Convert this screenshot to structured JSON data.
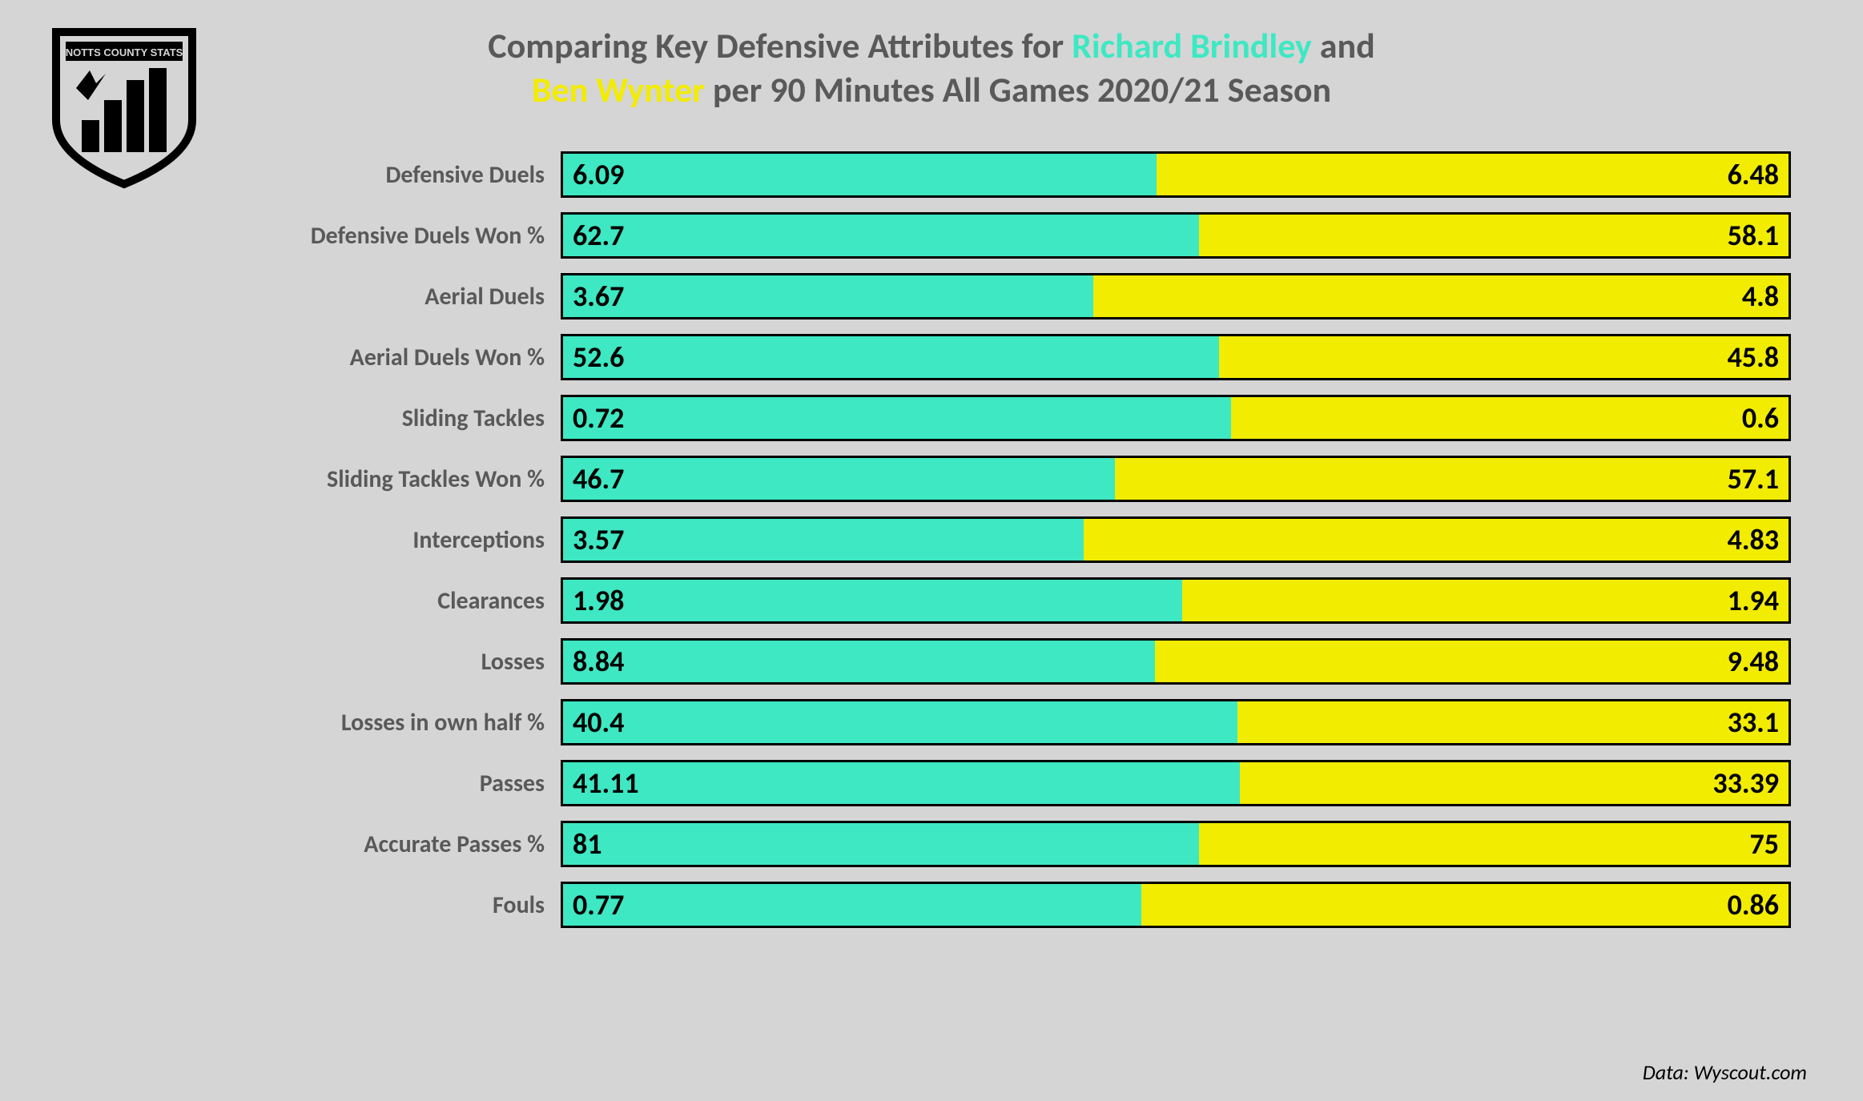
{
  "layout": {
    "background_color": "#d5d5d5",
    "title_color": "#595959",
    "title_fontsize": 44,
    "label_color": "#595959",
    "label_fontsize": 30,
    "value_color": "#000000",
    "value_fontsize": 36,
    "bar_border_color": "#000000",
    "bar_border_width": 3,
    "credit_color": "#000000",
    "credit_fontsize": 26
  },
  "players": {
    "a": {
      "name": "Richard Brindley",
      "color": "#3de8c3"
    },
    "b": {
      "name": "Ben Wynter",
      "color": "#f2ec00"
    }
  },
  "title": {
    "pre_a": "Comparing Key Defensive Attributes for ",
    "between": " and ",
    "post_b": " per 90 Minutes All Games 2020/21 Season"
  },
  "metrics": [
    {
      "label": "Defensive Duels",
      "a": "6.09",
      "b": "6.48",
      "a_pct": 48.4
    },
    {
      "label": "Defensive Duels Won %",
      "a": "62.7",
      "b": "58.1",
      "a_pct": 51.9
    },
    {
      "label": "Aerial Duels",
      "a": "3.67",
      "b": "4.8",
      "a_pct": 43.3
    },
    {
      "label": "Aerial Duels Won %",
      "a": "52.6",
      "b": "45.8",
      "a_pct": 53.5
    },
    {
      "label": "Sliding Tackles",
      "a": "0.72",
      "b": "0.6",
      "a_pct": 54.5
    },
    {
      "label": "Sliding Tackles Won %",
      "a": "46.7",
      "b": "57.1",
      "a_pct": 45.0
    },
    {
      "label": "Interceptions",
      "a": "3.57",
      "b": "4.83",
      "a_pct": 42.5
    },
    {
      "label": "Clearances",
      "a": "1.98",
      "b": "1.94",
      "a_pct": 50.5
    },
    {
      "label": "Losses",
      "a": "8.84",
      "b": "9.48",
      "a_pct": 48.3
    },
    {
      "label": "Losses in own half %",
      "a": "40.4",
      "b": "33.1",
      "a_pct": 55.0
    },
    {
      "label": "Passes",
      "a": "41.11",
      "b": "33.39",
      "a_pct": 55.2
    },
    {
      "label": "Accurate Passes %",
      "a": "81",
      "b": "75",
      "a_pct": 51.9
    },
    {
      "label": "Fouls",
      "a": "0.77",
      "b": "0.86",
      "a_pct": 47.2
    }
  ],
  "credit": "Data: Wyscout.com",
  "logo": {
    "text_top": "NOTTS COUNTY STATS",
    "stroke": "#000000",
    "fill_bg": "#d5d5d5"
  }
}
